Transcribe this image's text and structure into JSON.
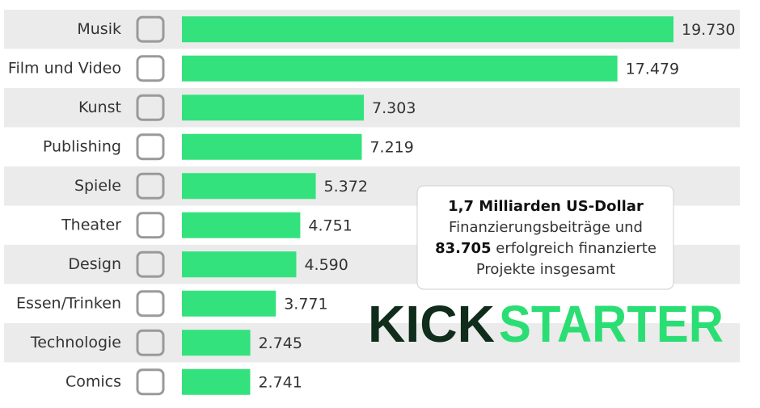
{
  "chart_data": {
    "type": "bar",
    "orientation": "horizontal",
    "categories": [
      "Musik",
      "Film und Video",
      "Kunst",
      "Publishing",
      "Spiele",
      "Theater",
      "Design",
      "Essen/Trinken",
      "Technologie",
      "Comics"
    ],
    "values": [
      19730,
      17479,
      7303,
      7219,
      5372,
      4751,
      4590,
      3771,
      2745,
      2741
    ],
    "value_labels": [
      "19.730",
      "17.479",
      "7.303",
      "7.219",
      "5.372",
      "4.751",
      "4.590",
      "3.771",
      "2.745",
      "2.741"
    ],
    "color": "#33e27c",
    "annotation": {
      "heading": "1,7 Milliarden US-Dollar",
      "line1": "Finanzierungsbeiträge und",
      "count": "83.705",
      "line2": "erfolgreich finanzierte",
      "line3": "Projekte insgesamt"
    },
    "logo": {
      "dark": "KICK",
      "green": "STARTER"
    }
  }
}
